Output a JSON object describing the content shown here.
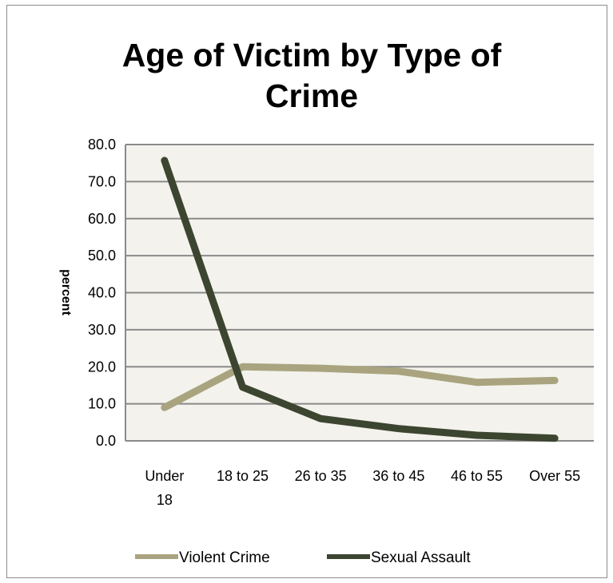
{
  "chart_data": {
    "type": "line",
    "title_lines": [
      "Age of Victim by Type of",
      "Crime"
    ],
    "ylabel": "percent",
    "xlabel": "",
    "categories": [
      [
        "Under",
        "18"
      ],
      [
        "18 to 25"
      ],
      [
        "26 to 35"
      ],
      [
        "36 to 45"
      ],
      [
        "46 to 55"
      ],
      [
        "Over 55"
      ]
    ],
    "ylim": [
      0,
      80
    ],
    "yticks": [
      "0.0",
      "10.0",
      "20.0",
      "30.0",
      "40.0",
      "50.0",
      "60.0",
      "70.0",
      "80.0"
    ],
    "grid": true,
    "legend_position": "bottom",
    "plot_background": "#f3f2ec",
    "series": [
      {
        "name": "Violent Crime",
        "color": "#a9a47f",
        "values": [
          9.0,
          20.0,
          19.6,
          18.8,
          15.8,
          16.3
        ]
      },
      {
        "name": "Sexual Assault",
        "color": "#3c4530",
        "values": [
          75.7,
          14.5,
          6.0,
          3.3,
          1.5,
          0.7
        ]
      }
    ]
  }
}
